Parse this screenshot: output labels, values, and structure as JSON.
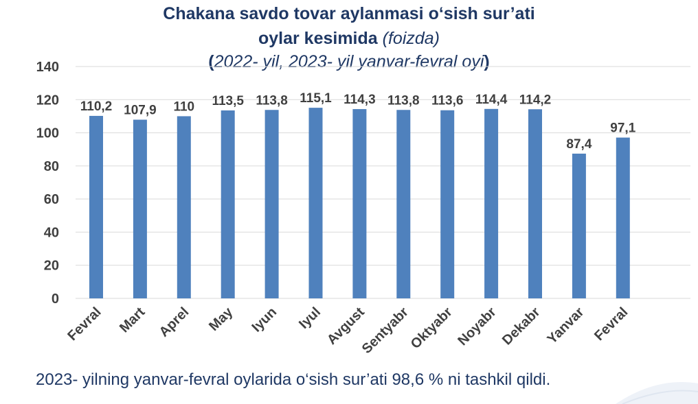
{
  "header": {
    "line1": "Chakana savdo tovar aylanmasi o‘sish sur’ati",
    "line2_bold": "oylar kesimida",
    "line2_italic": "(foizda)",
    "line3_open": "(",
    "line3_italic": "2022- yil, 2023- yil yanvar-fevral oyi",
    "line3_close": ")"
  },
  "chart_data": {
    "type": "bar",
    "categories": [
      "Fevral",
      "Mart",
      "Aprel",
      "May",
      "Iyun",
      "Iyul",
      "Avgust",
      "Sentyabr",
      "Oktyabr",
      "Noyabr",
      "Dekabr",
      "Yanvar",
      "Fevral"
    ],
    "values": [
      110.2,
      107.9,
      110,
      113.5,
      113.8,
      115.1,
      114.3,
      113.8,
      113.6,
      114.4,
      114.2,
      87.4,
      97.1
    ],
    "value_labels": [
      "110,2",
      "107,9",
      "110",
      "113,5",
      "113,8",
      "115,1",
      "114,3",
      "113,8",
      "113,6",
      "114,4",
      "114,2",
      "87,4",
      "97,1"
    ],
    "y_ticks": [
      "0",
      "20",
      "40",
      "60",
      "80",
      "100",
      "120",
      "140"
    ],
    "ylim": [
      0,
      140
    ],
    "grid": true,
    "bar_color": "#4f81bd"
  },
  "footnote": "2023- yilning yanvar-fevral oylarida o‘sish sur’ati 98,6 % ni tashkil qildi."
}
